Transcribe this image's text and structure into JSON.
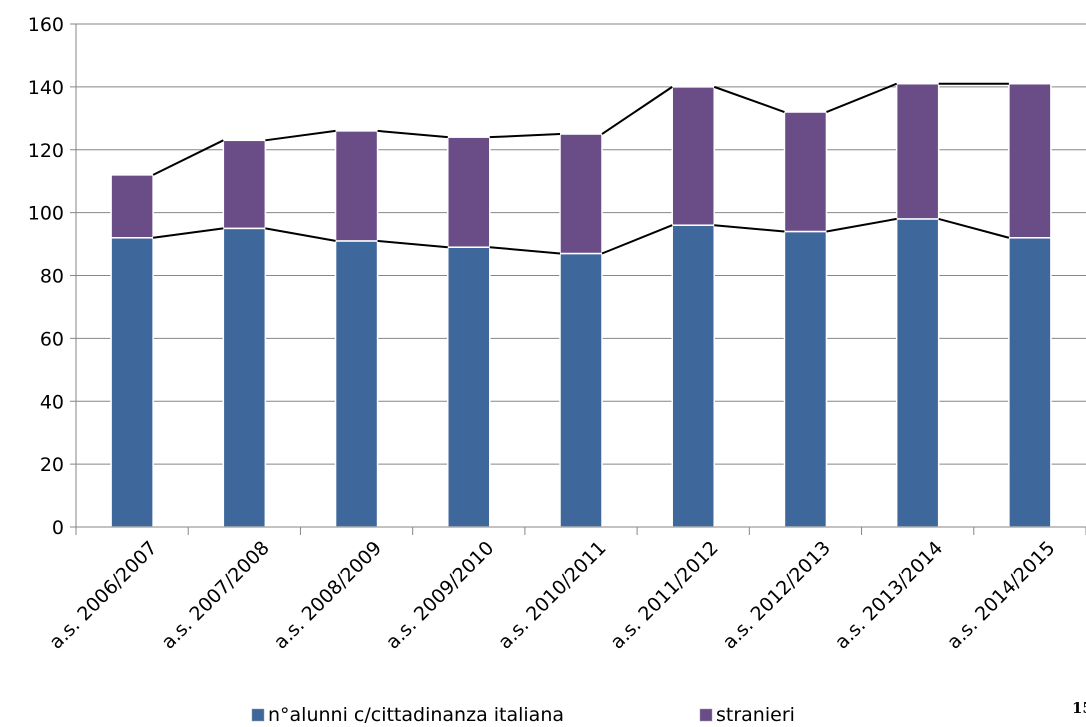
{
  "chart_data": {
    "type": "bar",
    "stacked": true,
    "categories": [
      "a.s. 2006/2007",
      "a.s. 2007/2008",
      "a.s. 2008/2009",
      "a.s. 2009/2010",
      "a.s. 2010/2011",
      "a.s. 2011/2012",
      "a.s. 2012/2013",
      "a.s. 2013/2014",
      "a.s. 2014/2015"
    ],
    "series": [
      {
        "name": "n°alunni c/cittadinanza italiana",
        "color": "#3e689b",
        "values": [
          92,
          95,
          91,
          89,
          87,
          96,
          94,
          98,
          92
        ]
      },
      {
        "name": "stranieri",
        "color": "#6a4c86",
        "values": [
          20,
          28,
          35,
          35,
          38,
          44,
          38,
          43,
          49
        ]
      }
    ],
    "ylim": [
      0,
      160
    ],
    "yticks": [
      0,
      20,
      40,
      60,
      80,
      100,
      120,
      140,
      160
    ],
    "grid": true,
    "legend_position": "bottom",
    "series_lines": true
  },
  "page_number": "15"
}
